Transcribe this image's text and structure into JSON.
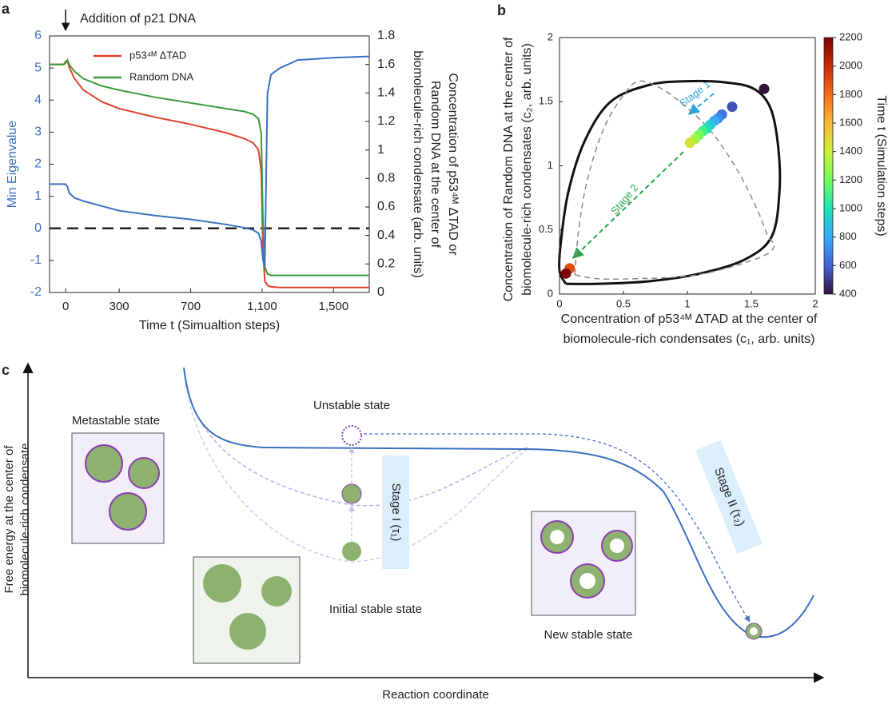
{
  "panel_labels": [
    "a",
    "b",
    "c"
  ],
  "chart_data": [
    {
      "type": "line",
      "annotation": {
        "text": "Addition of p21 DNA",
        "x": 0
      },
      "xlabel": "Time t (Simualtion steps)",
      "ylabel": "Min Eigenvalue",
      "ylabel_color": "#3a6fc4",
      "y2label": [
        "Concentration of p53⁴ᴹ ΔTAD or",
        "Random DNA at the center of",
        "biomolecule-rich condensate (arb. units)"
      ],
      "xlim": [
        -90,
        1700
      ],
      "xticks": [
        0,
        300,
        700,
        {
          "value": 1100,
          "label": "1,100"
        },
        {
          "value": 1500,
          "label": "1,500"
        }
      ],
      "ylim": [
        -2,
        6
      ],
      "yticks": [
        -2,
        -1,
        0,
        1,
        2,
        3,
        4,
        5,
        6
      ],
      "y2lim": [
        0,
        1.8
      ],
      "y2ticks": [
        0,
        0.2,
        0.4,
        0.6,
        0.8,
        1,
        1.2,
        1.4,
        1.6,
        1.8
      ],
      "hline": 0,
      "legend": "upper left",
      "x": [
        -90,
        -10,
        0,
        10,
        20,
        50,
        100,
        200,
        300,
        500,
        700,
        900,
        1000,
        1050,
        1080,
        1095,
        1105,
        1115,
        1130,
        1150,
        1200,
        1300,
        1500,
        1700
      ],
      "series": [
        {
          "name": "p53⁴ᴹ ΔTAD",
          "color": "#e0412c",
          "axis": "y2",
          "values": [
            1.6,
            1.6,
            1.61,
            1.63,
            1.58,
            1.5,
            1.42,
            1.34,
            1.29,
            1.23,
            1.18,
            1.12,
            1.08,
            1.05,
            1.0,
            0.85,
            0.3,
            0.08,
            0.05,
            0.04,
            0.035,
            0.035,
            0.035,
            0.035
          ]
        },
        {
          "name": "Random DNA",
          "color": "#3a9a3c",
          "axis": "y2",
          "values": [
            1.6,
            1.6,
            1.62,
            1.63,
            1.6,
            1.55,
            1.5,
            1.45,
            1.42,
            1.37,
            1.33,
            1.29,
            1.27,
            1.25,
            1.22,
            1.12,
            0.5,
            0.18,
            0.13,
            0.12,
            0.12,
            0.12,
            0.12,
            0.12
          ]
        },
        {
          "color": "#3a6fc4",
          "values": [
            1.38,
            1.38,
            1.38,
            1.3,
            1.1,
            0.95,
            0.85,
            0.7,
            0.55,
            0.4,
            0.28,
            0.12,
            0.02,
            -0.05,
            -0.15,
            -0.4,
            -1.0,
            -1.2,
            4.2,
            4.8,
            5.0,
            5.25,
            5.32,
            5.36
          ]
        }
      ]
    },
    {
      "type": "scatter",
      "xlabel": [
        "Concentration of p53⁴ᴹ ΔTAD at the center of",
        "biomolecule-rich condensates (c₁, arb. units)"
      ],
      "ylabel": [
        "Concentration of Random DNA at the center of",
        "biomolecule-rich condensates (c₂, arb. units)"
      ],
      "xlim": [
        0,
        2
      ],
      "xticks": [
        0,
        0.5,
        1,
        1.5,
        2
      ],
      "ylim": [
        0,
        2
      ],
      "yticks": [
        0,
        0.5,
        1,
        1.5,
        2
      ],
      "x": [
        1.6,
        1.35,
        1.27,
        1.24,
        1.21,
        1.18,
        1.15,
        1.12,
        1.09,
        1.06,
        1.02,
        0.08,
        0.05
      ],
      "y": [
        1.6,
        1.46,
        1.4,
        1.37,
        1.35,
        1.32,
        1.29,
        1.27,
        1.24,
        1.21,
        1.18,
        0.2,
        0.16
      ],
      "c": [
        400,
        560,
        650,
        720,
        800,
        900,
        1000,
        1100,
        1200,
        1300,
        1450,
        1900,
        2200
      ],
      "colorbar": {
        "label": "Time t (Simulation steps)",
        "lim": [
          400,
          2200
        ],
        "ticks": [
          400,
          600,
          800,
          1000,
          1200,
          1400,
          1600,
          1800,
          2000,
          2200
        ],
        "colors": [
          "#30123b",
          "#4662d7",
          "#36aaf9",
          "#1ae4b6",
          "#72fe5e",
          "#c8ef34",
          "#faba39",
          "#f66b19",
          "#ca2a04",
          "#7a0403"
        ]
      },
      "curves": [
        {
          "color": "#111111",
          "dashed": false,
          "x": [
            0.05,
            0.3,
            0.7,
            1.1,
            1.45,
            1.66,
            1.72,
            1.71,
            1.65,
            1.52,
            1.3,
            1.0,
            0.7,
            0.4,
            0.2,
            0.07,
            0.01,
            0.0,
            0.05
          ],
          "y": [
            0.08,
            0.08,
            0.1,
            0.16,
            0.27,
            0.45,
            0.8,
            1.15,
            1.45,
            1.6,
            1.65,
            1.66,
            1.63,
            1.5,
            1.2,
            0.8,
            0.4,
            0.18,
            0.08
          ]
        },
        {
          "color": "#888888",
          "dashed": true,
          "x": [
            0.12,
            0.15,
            0.22,
            0.35,
            0.5,
            0.62,
            0.8,
            1.0,
            1.2,
            1.4,
            1.55,
            1.63,
            1.68,
            1.6,
            1.3,
            1.0,
            0.6,
            0.3,
            0.12
          ],
          "y": [
            0.15,
            0.5,
            0.9,
            1.3,
            1.55,
            1.66,
            1.6,
            1.45,
            1.25,
            0.95,
            0.65,
            0.45,
            0.38,
            0.3,
            0.2,
            0.14,
            0.12,
            0.12,
            0.15
          ]
        }
      ],
      "annotations": [
        {
          "text": "Stage 1"
        },
        {
          "text": "Stage 2"
        }
      ]
    }
  ],
  "diagram": {
    "ylabel": [
      "Free energy at the center of",
      "biomolecule-rich condensate"
    ],
    "xlabel": "Reaction coordinate",
    "metastable": "Metastable state",
    "unstable": "Unstable state",
    "stage1": "Stage I (τ₁)",
    "stage2": "Stage II (τ₂)",
    "initial": "Initial stable state",
    "new": "New stable state"
  }
}
